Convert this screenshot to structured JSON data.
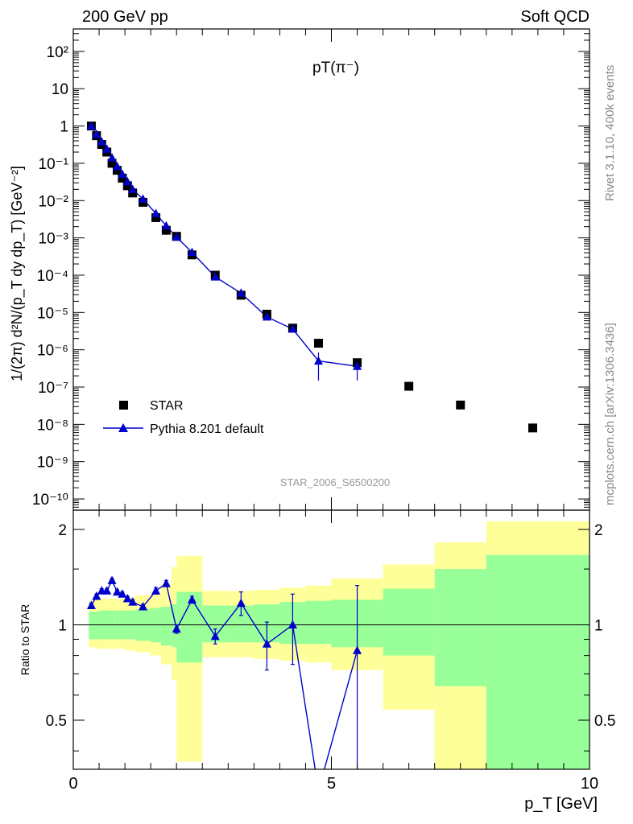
{
  "header": {
    "left_label": "200 GeV pp",
    "right_label": "Soft QCD",
    "plot_title": "pT(π⁻)",
    "analysis_id": "STAR_2006_S6500200",
    "side_rivet": "Rivet 3.1.10,  400k events",
    "side_mcplots": "mcplots.cern.ch [arXiv:1306.3436]"
  },
  "chart_data": [
    {
      "type": "scatter",
      "panel": "main",
      "ylabel": "1/(2π) d²N/(p_T dy dp_T) [GeV⁻²]",
      "yscale": "log",
      "xlim": [
        0,
        10
      ],
      "ylim": [
        5e-11,
        400
      ],
      "y_tick_labels": [
        "10⁻¹⁰",
        "10⁻⁹",
        "10⁻⁸",
        "10⁻⁷",
        "10⁻⁶",
        "10⁻⁵",
        "10⁻⁴",
        "10⁻³",
        "10⁻²",
        "10⁻¹",
        "1",
        "10",
        "10²"
      ],
      "legend": {
        "placement": "bottom-left",
        "entries": [
          "STAR",
          "Pythia 8.201 default"
        ]
      },
      "series": [
        {
          "name": "STAR",
          "marker": "square",
          "color": "#000000",
          "x": [
            0.35,
            0.45,
            0.55,
            0.65,
            0.75,
            0.85,
            0.95,
            1.05,
            1.15,
            1.35,
            1.6,
            1.8,
            2.0,
            2.3,
            2.75,
            3.25,
            3.75,
            4.25,
            4.75,
            5.5,
            6.5,
            7.5,
            8.9
          ],
          "y": [
            1.0,
            0.55,
            0.32,
            0.2,
            0.1,
            0.065,
            0.04,
            0.025,
            0.016,
            0.009,
            0.0035,
            0.0016,
            0.0011,
            0.00035,
            0.0001,
            2.9e-05,
            9e-06,
            3.8e-06,
            1.5e-06,
            4.5e-07,
            1.05e-07,
            3.3e-08,
            8e-09
          ]
        },
        {
          "name": "Pythia 8.201 default",
          "marker": "triangle",
          "color": "#0000cc",
          "x": [
            0.35,
            0.45,
            0.55,
            0.65,
            0.75,
            0.85,
            0.95,
            1.05,
            1.15,
            1.35,
            1.6,
            1.8,
            2.0,
            2.3,
            2.75,
            3.25,
            3.75,
            4.25,
            4.75,
            5.5
          ],
          "y": [
            1.0,
            0.6,
            0.38,
            0.24,
            0.14,
            0.082,
            0.051,
            0.032,
            0.02,
            0.011,
            0.0045,
            0.0021,
            0.00105,
            0.00041,
            9e-05,
            3.3e-05,
            7.6e-06,
            3.6e-06,
            5e-07,
            3.6e-07
          ],
          "y_err_low": [
            0,
            0,
            0,
            0,
            0,
            0,
            0,
            0,
            0,
            0,
            0,
            0,
            0,
            0,
            0,
            0,
            0,
            0,
            3.5e-07,
            2.1e-07
          ],
          "y_err_high": [
            0,
            0,
            0,
            0,
            0,
            0,
            0,
            0,
            0,
            0,
            0,
            0,
            0,
            0,
            0,
            0,
            0,
            0,
            3.5e-07,
            1.2e-07
          ]
        }
      ]
    },
    {
      "type": "line",
      "panel": "ratio",
      "xlabel": "p_T [GeV]",
      "ylabel": "Ratio to STAR",
      "xlim": [
        0,
        10
      ],
      "ylim": [
        0.35,
        2.3
      ],
      "x_tick_labels": [
        "0",
        "5",
        "10"
      ],
      "y_tick_labels": [
        "0.5",
        "1",
        "2"
      ],
      "reference_line": 1,
      "bands": {
        "edges": [
          0.3,
          0.4,
          0.5,
          0.6,
          0.7,
          0.8,
          0.9,
          1.0,
          1.1,
          1.2,
          1.5,
          1.7,
          1.9,
          2.0,
          2.5,
          3.0,
          3.5,
          4.0,
          4.5,
          5.0,
          6.0,
          7.0,
          8.0,
          10.0
        ],
        "inner_color": "#99ff99",
        "outer_color": "#ffff99",
        "inner_low": [
          0.9,
          0.9,
          0.9,
          0.9,
          0.9,
          0.9,
          0.9,
          0.9,
          0.9,
          0.89,
          0.88,
          0.86,
          0.85,
          0.76,
          0.88,
          0.88,
          0.88,
          0.87,
          0.87,
          0.85,
          0.8,
          0.64,
          0.35,
          0.35
        ],
        "inner_high": [
          1.1,
          1.1,
          1.11,
          1.11,
          1.11,
          1.11,
          1.11,
          1.11,
          1.11,
          1.12,
          1.13,
          1.14,
          1.16,
          1.27,
          1.15,
          1.15,
          1.16,
          1.18,
          1.19,
          1.2,
          1.3,
          1.5,
          1.66,
          1.66
        ],
        "outer_low": [
          0.85,
          0.84,
          0.84,
          0.84,
          0.84,
          0.84,
          0.84,
          0.83,
          0.83,
          0.82,
          0.8,
          0.75,
          0.67,
          0.37,
          0.79,
          0.79,
          0.78,
          0.77,
          0.76,
          0.72,
          0.54,
          0.35,
          0.35,
          0.35
        ],
        "outer_high": [
          1.19,
          1.2,
          1.21,
          1.21,
          1.21,
          1.21,
          1.21,
          1.21,
          1.22,
          1.24,
          1.26,
          1.35,
          1.52,
          1.65,
          1.28,
          1.28,
          1.29,
          1.31,
          1.33,
          1.4,
          1.55,
          1.82,
          2.12,
          2.12
        ]
      },
      "series": [
        {
          "name": "Pythia 8.201 default",
          "marker": "triangle",
          "color": "#0000cc",
          "x": [
            0.35,
            0.45,
            0.55,
            0.65,
            0.75,
            0.85,
            0.95,
            1.05,
            1.15,
            1.35,
            1.6,
            1.8,
            2.0,
            2.3,
            2.75,
            3.25,
            3.75,
            4.25,
            4.75,
            5.5
          ],
          "y": [
            1.15,
            1.23,
            1.28,
            1.28,
            1.38,
            1.27,
            1.25,
            1.21,
            1.18,
            1.14,
            1.28,
            1.35,
            0.97,
            1.2,
            0.92,
            1.17,
            0.87,
            1.0,
            0.3,
            0.83
          ],
          "y_err": [
            0.02,
            0.02,
            0.02,
            0.02,
            0.02,
            0.02,
            0.02,
            0.02,
            0.02,
            0.02,
            0.03,
            0.03,
            0.03,
            0.03,
            0.05,
            0.1,
            0.15,
            0.25,
            0.0,
            0.5
          ]
        }
      ]
    }
  ]
}
